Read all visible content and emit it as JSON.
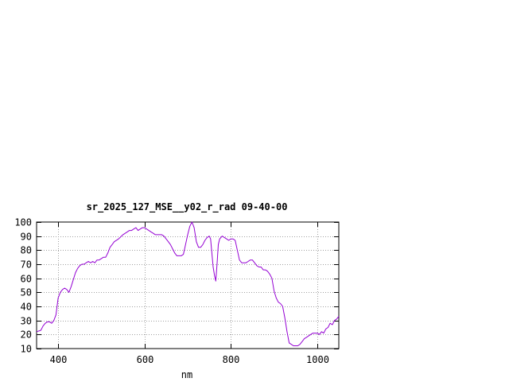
{
  "chart_data": {
    "type": "line",
    "title": "sr_2025_127_MSE__y02_r_rad 09-40-00",
    "xlabel": "nm",
    "ylabel": "",
    "xlim": [
      350,
      1050
    ],
    "ylim": [
      10,
      100
    ],
    "xticks": [
      400,
      600,
      800,
      1000
    ],
    "yticks": [
      10,
      20,
      30,
      40,
      50,
      60,
      70,
      80,
      90,
      100
    ],
    "grid": true,
    "line_color": "#9400d3",
    "series": [
      {
        "name": "",
        "x": [
          350,
          360,
          365,
          370,
          375,
          380,
          385,
          390,
          395,
          400,
          405,
          410,
          415,
          420,
          425,
          430,
          440,
          445,
          450,
          455,
          460,
          465,
          470,
          475,
          480,
          485,
          490,
          495,
          500,
          505,
          510,
          515,
          520,
          525,
          530,
          540,
          550,
          560,
          565,
          570,
          575,
          580,
          585,
          590,
          595,
          600,
          605,
          610,
          615,
          620,
          625,
          630,
          635,
          640,
          645,
          650,
          655,
          660,
          665,
          670,
          675,
          680,
          685,
          690,
          695,
          700,
          705,
          710,
          715,
          720,
          725,
          730,
          735,
          740,
          745,
          750,
          753,
          756,
          759,
          762,
          765,
          768,
          771,
          774,
          777,
          780,
          785,
          790,
          795,
          800,
          805,
          810,
          815,
          820,
          825,
          830,
          835,
          840,
          845,
          850,
          855,
          860,
          865,
          870,
          875,
          880,
          885,
          890,
          895,
          900,
          905,
          910,
          915,
          920,
          925,
          930,
          935,
          940,
          945,
          950,
          955,
          960,
          965,
          970,
          975,
          980,
          985,
          990,
          995,
          1000,
          1005,
          1010,
          1015,
          1020,
          1025,
          1030,
          1035,
          1040,
          1045,
          1050
        ],
        "y": [
          22,
          23,
          26,
          28,
          29,
          29,
          28,
          30,
          34,
          46,
          50,
          52,
          53,
          52,
          50,
          54,
          64,
          67,
          69,
          70,
          70,
          71,
          72,
          71,
          72,
          71,
          73,
          73,
          74,
          75,
          75,
          78,
          82,
          84,
          86,
          88,
          91,
          93,
          94,
          94,
          95,
          96,
          94,
          95,
          96,
          96,
          95,
          94,
          93,
          92,
          91,
          91,
          91,
          91,
          90,
          88,
          86,
          84,
          81,
          78,
          76,
          76,
          76,
          77,
          84,
          91,
          97,
          100,
          96,
          86,
          82,
          82,
          84,
          87,
          89,
          90,
          88,
          78,
          68,
          62,
          58,
          70,
          84,
          88,
          89,
          90,
          89,
          88,
          87,
          88,
          88,
          87,
          80,
          73,
          71,
          71,
          71,
          72,
          73,
          73,
          71,
          69,
          68,
          68,
          66,
          66,
          65,
          63,
          60,
          51,
          46,
          43,
          42,
          40,
          32,
          22,
          14,
          13,
          12,
          12,
          12,
          13,
          15,
          17,
          18,
          19,
          20,
          21,
          21,
          21,
          20,
          22,
          21,
          24,
          25,
          28,
          27,
          30,
          31,
          33
        ]
      }
    ]
  }
}
